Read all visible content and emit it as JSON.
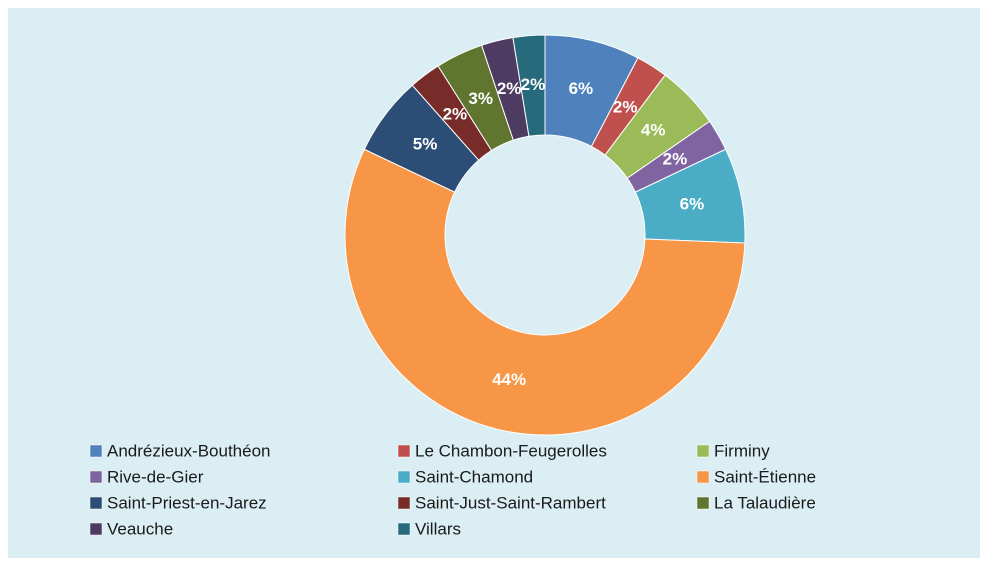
{
  "chart_data": {
    "type": "donut",
    "categories": [
      "Andrézieux-Bouthéon",
      "Le Chambon-Feugerolles",
      "Firminy",
      "Rive-de-Gier",
      "Saint-Chamond",
      "Saint-Étienne",
      "Saint-Priest-en-Jarez",
      "Saint-Just-Saint-Rambert",
      "La Talaudière",
      "Veauche",
      "Villars"
    ],
    "values": [
      6,
      2,
      4,
      2,
      6,
      44,
      5,
      2,
      3,
      2,
      2
    ],
    "value_labels": [
      "6%",
      "2%",
      "4%",
      "2%",
      "6%",
      "44%",
      "5%",
      "2%",
      "3%",
      "2%",
      "2%"
    ],
    "colors": [
      "#4f81bd",
      "#c0504d",
      "#9bbb59",
      "#8064a2",
      "#4bacc6",
      "#f79646",
      "#2c4d75",
      "#772c2a",
      "#5f7530",
      "#4d3b62",
      "#276a7c"
    ],
    "legend": "bottom"
  }
}
